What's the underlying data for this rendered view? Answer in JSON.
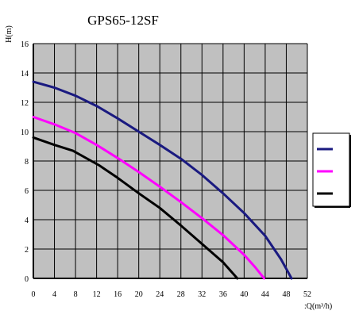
{
  "chart_data": {
    "type": "line",
    "title": "GPS65-12SF",
    "ylabel": "H(m)",
    "xlabel": ":Q(m³/h)",
    "xlim": [
      0,
      52
    ],
    "ylim": [
      0,
      16
    ],
    "xticks": [
      0,
      4,
      8,
      12,
      16,
      20,
      24,
      28,
      32,
      36,
      40,
      44,
      48,
      52
    ],
    "yticks": [
      0,
      2,
      4,
      6,
      8,
      10,
      12,
      14,
      16
    ],
    "grid": true,
    "legend_position": "right",
    "plot_background": "#c0c0c0",
    "series": [
      {
        "color": "#1a1a80",
        "points": [
          [
            0,
            13.4
          ],
          [
            4,
            13.0
          ],
          [
            8,
            12.45
          ],
          [
            12,
            11.75
          ],
          [
            16,
            10.9
          ],
          [
            20,
            10.0
          ],
          [
            24,
            9.1
          ],
          [
            28,
            8.15
          ],
          [
            32,
            7.05
          ],
          [
            36,
            5.8
          ],
          [
            40,
            4.45
          ],
          [
            44,
            2.9
          ],
          [
            47,
            1.3
          ],
          [
            49,
            0
          ]
        ]
      },
      {
        "color": "#ff00ff",
        "points": [
          [
            0,
            11.0
          ],
          [
            4,
            10.5
          ],
          [
            8,
            9.9
          ],
          [
            12,
            9.1
          ],
          [
            16,
            8.2
          ],
          [
            20,
            7.25
          ],
          [
            24,
            6.25
          ],
          [
            28,
            5.2
          ],
          [
            32,
            4.1
          ],
          [
            36,
            2.95
          ],
          [
            40,
            1.6
          ],
          [
            42,
            0.8
          ],
          [
            43.8,
            0
          ]
        ]
      },
      {
        "color": "#000000",
        "points": [
          [
            0,
            9.6
          ],
          [
            4,
            9.1
          ],
          [
            7.5,
            8.7
          ],
          [
            12.5,
            7.7
          ],
          [
            16,
            6.85
          ],
          [
            20,
            5.8
          ],
          [
            24,
            4.8
          ],
          [
            28,
            3.6
          ],
          [
            32,
            2.35
          ],
          [
            36,
            1.1
          ],
          [
            38.7,
            0
          ]
        ]
      }
    ]
  }
}
